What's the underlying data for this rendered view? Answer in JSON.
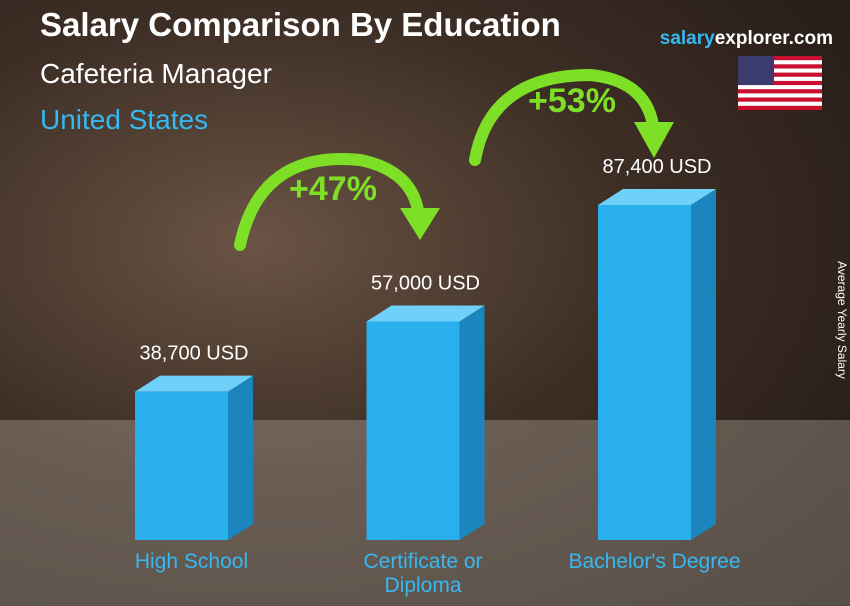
{
  "chart_data": {
    "type": "bar",
    "title": "Salary Comparison By Education",
    "subtitle": "Cafeteria Manager",
    "location": "United States",
    "brand": [
      "salary",
      "explorer.com"
    ],
    "y_axis_label": "Average Yearly Salary",
    "categories": [
      "High School",
      "Certificate or Diploma",
      "Bachelor's Degree"
    ],
    "values": [
      38700,
      57000,
      87400
    ],
    "value_labels": [
      "38,700 USD",
      "57,000 USD",
      "87,400 USD"
    ],
    "color": "#29b0ec",
    "annotations": [
      "+47%",
      "+53%"
    ]
  }
}
